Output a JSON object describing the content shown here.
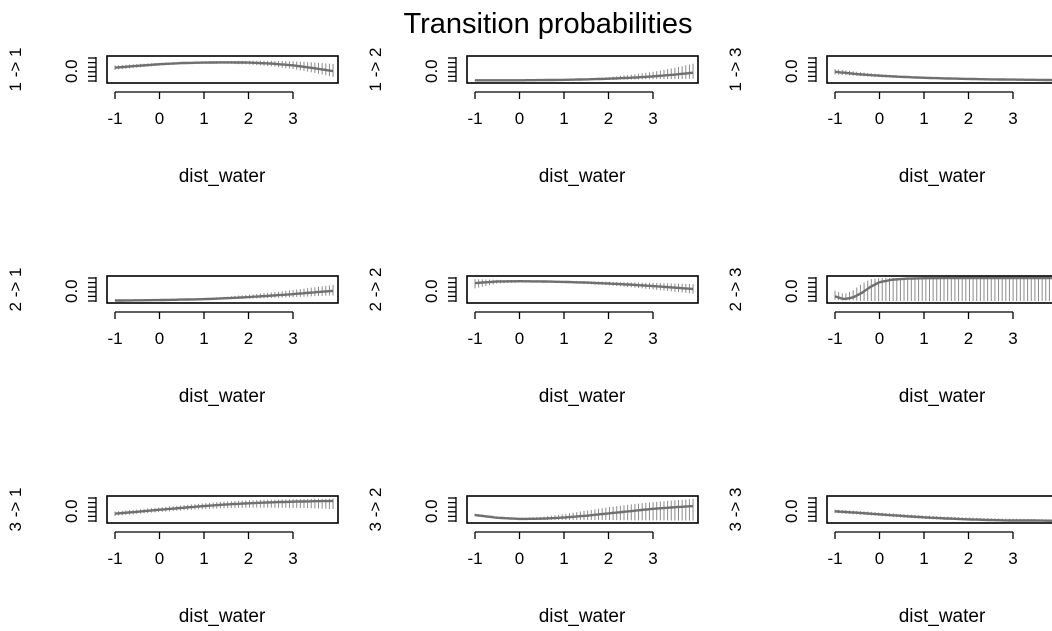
{
  "title": "Transition probabilities",
  "chart_data": [
    {
      "type": "line",
      "ylabel": "1 -> 1",
      "xlabel": "dist_water",
      "x_ticks": [
        -1,
        0,
        1,
        2,
        3
      ],
      "y_tick_label": "0.0",
      "xlim": [
        -1.05,
        4.0
      ],
      "ylim": [
        0,
        1
      ],
      "x": [
        -1,
        -0.5,
        0,
        0.5,
        1,
        1.5,
        2,
        2.5,
        3,
        3.5,
        3.9
      ],
      "mean": [
        0.58,
        0.66,
        0.73,
        0.78,
        0.8,
        0.81,
        0.8,
        0.76,
        0.68,
        0.55,
        0.43
      ],
      "lower": [
        0.48,
        0.58,
        0.67,
        0.73,
        0.75,
        0.75,
        0.72,
        0.64,
        0.52,
        0.35,
        0.18
      ],
      "upper": [
        0.68,
        0.74,
        0.79,
        0.83,
        0.85,
        0.87,
        0.88,
        0.88,
        0.86,
        0.8,
        0.74
      ]
    },
    {
      "type": "line",
      "ylabel": "1 -> 2",
      "xlabel": "dist_water",
      "x_ticks": [
        -1,
        0,
        1,
        2,
        3
      ],
      "y_tick_label": "0.0",
      "xlim": [
        -1.05,
        4.0
      ],
      "ylim": [
        0,
        1
      ],
      "x": [
        -1,
        -0.5,
        0,
        0.5,
        1,
        1.5,
        2,
        2.5,
        3,
        3.5,
        3.9
      ],
      "mean": [
        0.03,
        0.03,
        0.03,
        0.04,
        0.05,
        0.07,
        0.1,
        0.14,
        0.2,
        0.28,
        0.36
      ],
      "lower": [
        0.01,
        0.01,
        0.02,
        0.02,
        0.03,
        0.04,
        0.05,
        0.06,
        0.08,
        0.09,
        0.1
      ],
      "upper": [
        0.05,
        0.05,
        0.05,
        0.06,
        0.08,
        0.11,
        0.17,
        0.27,
        0.4,
        0.58,
        0.75
      ]
    },
    {
      "type": "line",
      "ylabel": "1 -> 3",
      "xlabel": "dist_water",
      "x_ticks": [
        -1,
        0,
        1,
        2,
        3
      ],
      "y_tick_label": "0.0",
      "xlim": [
        -1.05,
        4.0
      ],
      "ylim": [
        0,
        1
      ],
      "x": [
        -1,
        -0.5,
        0,
        0.5,
        1,
        1.5,
        2,
        2.5,
        3,
        3.5,
        3.9
      ],
      "mean": [
        0.4,
        0.3,
        0.23,
        0.18,
        0.14,
        0.11,
        0.09,
        0.07,
        0.06,
        0.05,
        0.04
      ],
      "lower": [
        0.28,
        0.22,
        0.17,
        0.13,
        0.1,
        0.07,
        0.05,
        0.04,
        0.03,
        0.02,
        0.01
      ],
      "upper": [
        0.52,
        0.4,
        0.3,
        0.23,
        0.18,
        0.15,
        0.13,
        0.11,
        0.1,
        0.09,
        0.08
      ]
    },
    {
      "type": "line",
      "ylabel": "2 -> 1",
      "xlabel": "dist_water",
      "x_ticks": [
        -1,
        0,
        1,
        2,
        3
      ],
      "y_tick_label": "0.0",
      "xlim": [
        -1.05,
        4.0
      ],
      "ylim": [
        0,
        1
      ],
      "x": [
        -1,
        -0.5,
        0,
        0.5,
        1,
        1.5,
        2,
        2.5,
        3,
        3.5,
        3.9
      ],
      "mean": [
        0.02,
        0.03,
        0.04,
        0.06,
        0.08,
        0.12,
        0.17,
        0.23,
        0.3,
        0.38,
        0.44
      ],
      "lower": [
        0.01,
        0.02,
        0.03,
        0.04,
        0.05,
        0.07,
        0.1,
        0.13,
        0.17,
        0.21,
        0.24
      ],
      "upper": [
        0.04,
        0.05,
        0.06,
        0.09,
        0.13,
        0.19,
        0.27,
        0.37,
        0.48,
        0.6,
        0.7
      ]
    },
    {
      "type": "line",
      "ylabel": "2 -> 2",
      "xlabel": "dist_water",
      "x_ticks": [
        -1,
        0,
        1,
        2,
        3
      ],
      "y_tick_label": "0.0",
      "xlim": [
        -1.05,
        4.0
      ],
      "ylim": [
        0,
        1
      ],
      "x": [
        -1,
        -0.5,
        0,
        0.5,
        1,
        1.5,
        2,
        2.5,
        3,
        3.5,
        3.9
      ],
      "mean": [
        0.78,
        0.85,
        0.86,
        0.85,
        0.83,
        0.8,
        0.76,
        0.71,
        0.65,
        0.58,
        0.52
      ],
      "lower": [
        0.55,
        0.76,
        0.8,
        0.8,
        0.78,
        0.74,
        0.68,
        0.6,
        0.5,
        0.4,
        0.32
      ],
      "upper": [
        0.95,
        0.92,
        0.91,
        0.9,
        0.88,
        0.86,
        0.84,
        0.81,
        0.79,
        0.76,
        0.74
      ]
    },
    {
      "type": "line",
      "ylabel": "2 -> 3",
      "xlabel": "dist_water",
      "x_ticks": [
        -1,
        0,
        1,
        2,
        3
      ],
      "y_tick_label": "0.0",
      "xlim": [
        -1.05,
        4.0
      ],
      "ylim": [
        0,
        1
      ],
      "x": [
        -1,
        -0.8,
        -0.6,
        -0.4,
        -0.2,
        0,
        0.3,
        0.6,
        1,
        2,
        3,
        3.9
      ],
      "mean": [
        0.2,
        0.08,
        0.15,
        0.35,
        0.62,
        0.82,
        0.93,
        0.97,
        0.99,
        1.0,
        1.0,
        1.0
      ],
      "lower": [
        0.05,
        0.02,
        0.03,
        0.0,
        0.0,
        0.0,
        0.0,
        0.0,
        0.0,
        0.0,
        0.0,
        0.0
      ],
      "upper": [
        0.45,
        0.3,
        0.45,
        0.75,
        0.95,
        1.0,
        1.0,
        1.0,
        1.0,
        1.0,
        1.0,
        1.0
      ]
    },
    {
      "type": "line",
      "ylabel": "3 -> 1",
      "xlabel": "dist_water",
      "x_ticks": [
        -1,
        0,
        1,
        2,
        3
      ],
      "y_tick_label": "0.0",
      "xlim": [
        -1.05,
        4.0
      ],
      "ylim": [
        0,
        1
      ],
      "x": [
        -1,
        -0.5,
        0,
        0.5,
        1,
        1.5,
        2,
        2.5,
        3,
        3.5,
        3.9
      ],
      "mean": [
        0.32,
        0.4,
        0.49,
        0.57,
        0.65,
        0.72,
        0.77,
        0.81,
        0.84,
        0.86,
        0.87
      ],
      "lower": [
        0.22,
        0.31,
        0.39,
        0.46,
        0.52,
        0.56,
        0.58,
        0.58,
        0.57,
        0.55,
        0.52
      ],
      "upper": [
        0.42,
        0.5,
        0.59,
        0.68,
        0.77,
        0.85,
        0.9,
        0.93,
        0.95,
        0.96,
        0.97
      ]
    },
    {
      "type": "line",
      "ylabel": "3 -> 2",
      "xlabel": "dist_water",
      "x_ticks": [
        -1,
        0,
        1,
        2,
        3
      ],
      "y_tick_label": "0.0",
      "xlim": [
        -1.05,
        4.0
      ],
      "ylim": [
        0,
        1
      ],
      "x": [
        -1,
        -0.5,
        0,
        0.5,
        1,
        1.5,
        2,
        2.5,
        3,
        3.5,
        3.9
      ],
      "mean": [
        0.26,
        0.14,
        0.09,
        0.1,
        0.15,
        0.23,
        0.33,
        0.43,
        0.53,
        0.6,
        0.65
      ],
      "lower": [
        0.2,
        0.1,
        0.05,
        0.04,
        0.04,
        0.04,
        0.04,
        0.03,
        0.03,
        0.02,
        0.02
      ],
      "upper": [
        0.32,
        0.2,
        0.14,
        0.18,
        0.3,
        0.45,
        0.6,
        0.72,
        0.82,
        0.9,
        0.96
      ]
    },
    {
      "type": "line",
      "ylabel": "3 -> 3",
      "xlabel": "dist_water",
      "x_ticks": [
        -1,
        0,
        1,
        2,
        3
      ],
      "y_tick_label": "0.0",
      "xlim": [
        -1.05,
        4.0
      ],
      "ylim": [
        0,
        1
      ],
      "x": [
        -1,
        -0.5,
        0,
        0.5,
        1,
        1.5,
        2,
        2.5,
        3,
        3.5,
        3.9
      ],
      "mean": [
        0.42,
        0.36,
        0.29,
        0.22,
        0.16,
        0.11,
        0.07,
        0.04,
        0.02,
        0.02,
        0.01
      ],
      "lower": [
        0.34,
        0.28,
        0.22,
        0.15,
        0.09,
        0.05,
        0.02,
        0.01,
        0.0,
        0.0,
        0.0
      ],
      "upper": [
        0.5,
        0.44,
        0.37,
        0.3,
        0.24,
        0.19,
        0.15,
        0.12,
        0.1,
        0.08,
        0.07
      ]
    }
  ]
}
